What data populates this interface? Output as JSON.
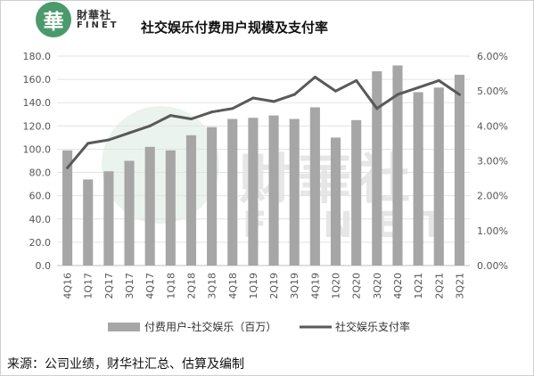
{
  "header": {
    "logo_glyph": "華",
    "logo_cn": "財華社",
    "logo_en": "FINET",
    "brand_color": "#4a9a6b"
  },
  "chart_data": {
    "type": "bar",
    "title": "社交娱乐付费用户规模及支付率",
    "categories": [
      "4Q16",
      "1Q17",
      "2Q17",
      "3Q17",
      "4Q17",
      "1Q18",
      "2Q18",
      "3Q18",
      "4Q18",
      "1Q19",
      "2Q19",
      "3Q19",
      "4Q19",
      "1Q20",
      "2Q20",
      "3Q20",
      "4Q20",
      "1Q21",
      "2Q21",
      "3Q21"
    ],
    "series": [
      {
        "name": "付费用户-社交娱乐（百万）",
        "type": "bar",
        "axis": "left",
        "color": "#a6a6a6",
        "values": [
          99,
          74,
          81,
          90,
          102,
          99,
          112,
          119,
          126,
          127,
          129,
          126,
          136,
          110,
          125,
          167,
          172,
          149,
          153,
          164
        ]
      },
      {
        "name": "社交娱乐支付率",
        "type": "line",
        "axis": "right",
        "color": "#595959",
        "values": [
          2.8,
          3.5,
          3.6,
          3.8,
          4.0,
          4.3,
          4.2,
          4.4,
          4.5,
          4.8,
          4.7,
          4.9,
          5.4,
          5.0,
          5.3,
          4.5,
          4.9,
          5.1,
          5.3,
          4.9
        ]
      }
    ],
    "ylim": [
      0,
      180
    ],
    "yticks": [
      "0.0",
      "20.0",
      "40.0",
      "60.0",
      "80.0",
      "100.0",
      "120.0",
      "140.0",
      "160.0",
      "180.0"
    ],
    "y2lim": [
      0,
      6
    ],
    "y2ticks": [
      "0.00%",
      "1.00%",
      "2.00%",
      "3.00%",
      "4.00%",
      "5.00%",
      "6.00%"
    ],
    "xlabel": "",
    "ylabel": "",
    "grid": true,
    "legend": "bottom"
  },
  "watermark": {
    "cn": "財華社",
    "en": "FINET"
  },
  "source": {
    "text": "来源：公司业绩，财华社汇总、估算及编制"
  }
}
